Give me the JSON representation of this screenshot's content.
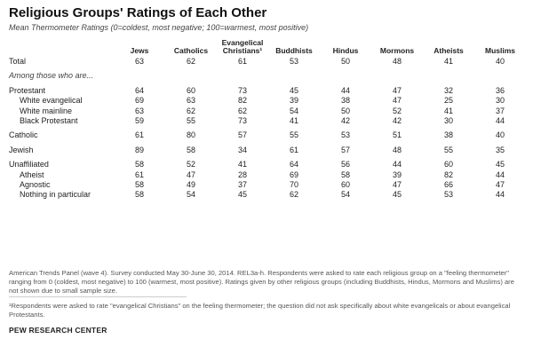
{
  "title": "Religious Groups' Ratings of Each Other",
  "subtitle": "Mean Thermometer Ratings (0=coldest, most negative; 100=warmest, most positive)",
  "columns": [
    "Jews",
    "Catholics",
    "Evangelical Christians¹",
    "Buddhists",
    "Hindus",
    "Mormons",
    "Atheists",
    "Muslims"
  ],
  "total": {
    "label": "Total",
    "values": [
      "63",
      "62",
      "61",
      "53",
      "50",
      "48",
      "41",
      "40"
    ]
  },
  "section_label": "Among those who are...",
  "groups": [
    {
      "rows": [
        {
          "label": "Protestant",
          "indent": false,
          "values": [
            "64",
            "60",
            "73",
            "45",
            "44",
            "47",
            "32",
            "36"
          ]
        },
        {
          "label": "White evangelical",
          "indent": true,
          "values": [
            "69",
            "63",
            "82",
            "39",
            "38",
            "47",
            "25",
            "30"
          ]
        },
        {
          "label": "White mainline",
          "indent": true,
          "values": [
            "63",
            "62",
            "62",
            "54",
            "50",
            "52",
            "41",
            "37"
          ]
        },
        {
          "label": "Black Protestant",
          "indent": true,
          "values": [
            "59",
            "55",
            "73",
            "41",
            "42",
            "42",
            "30",
            "44"
          ]
        }
      ]
    },
    {
      "rows": [
        {
          "label": "Catholic",
          "indent": false,
          "values": [
            "61",
            "80",
            "57",
            "55",
            "53",
            "51",
            "38",
            "40"
          ]
        }
      ]
    },
    {
      "rows": [
        {
          "label": "Jewish",
          "indent": false,
          "values": [
            "89",
            "58",
            "34",
            "61",
            "57",
            "48",
            "55",
            "35"
          ]
        }
      ]
    },
    {
      "rows": [
        {
          "label": "Unaffiliated",
          "indent": false,
          "values": [
            "58",
            "52",
            "41",
            "64",
            "56",
            "44",
            "60",
            "45"
          ]
        },
        {
          "label": "Atheist",
          "indent": true,
          "values": [
            "61",
            "47",
            "28",
            "69",
            "58",
            "39",
            "82",
            "44"
          ]
        },
        {
          "label": "Agnostic",
          "indent": true,
          "values": [
            "58",
            "49",
            "37",
            "70",
            "60",
            "47",
            "66",
            "47"
          ]
        },
        {
          "label": "Nothing in particular",
          "indent": true,
          "values": [
            "58",
            "54",
            "45",
            "62",
            "54",
            "45",
            "53",
            "44"
          ]
        }
      ]
    }
  ],
  "note": "American Trends Panel (wave 4). Survey conducted May 30-June 30, 2014.  REL3a-h. Respondents were asked to rate each religious group on a \"feeling thermometer\" ranging from 0 (coldest, most negative) to 100 (warmest, most positive). Ratings given by other religious groups (including Buddhists, Hindus, Mormons and Muslims) are not shown due to small sample size.",
  "footnote": "¹Respondents were asked to rate \"evangelical Christians\" on the feeling thermometer; the question did not ask specifically about white evangelicals or about evangelical Protestants.",
  "source": "PEW RESEARCH CENTER"
}
